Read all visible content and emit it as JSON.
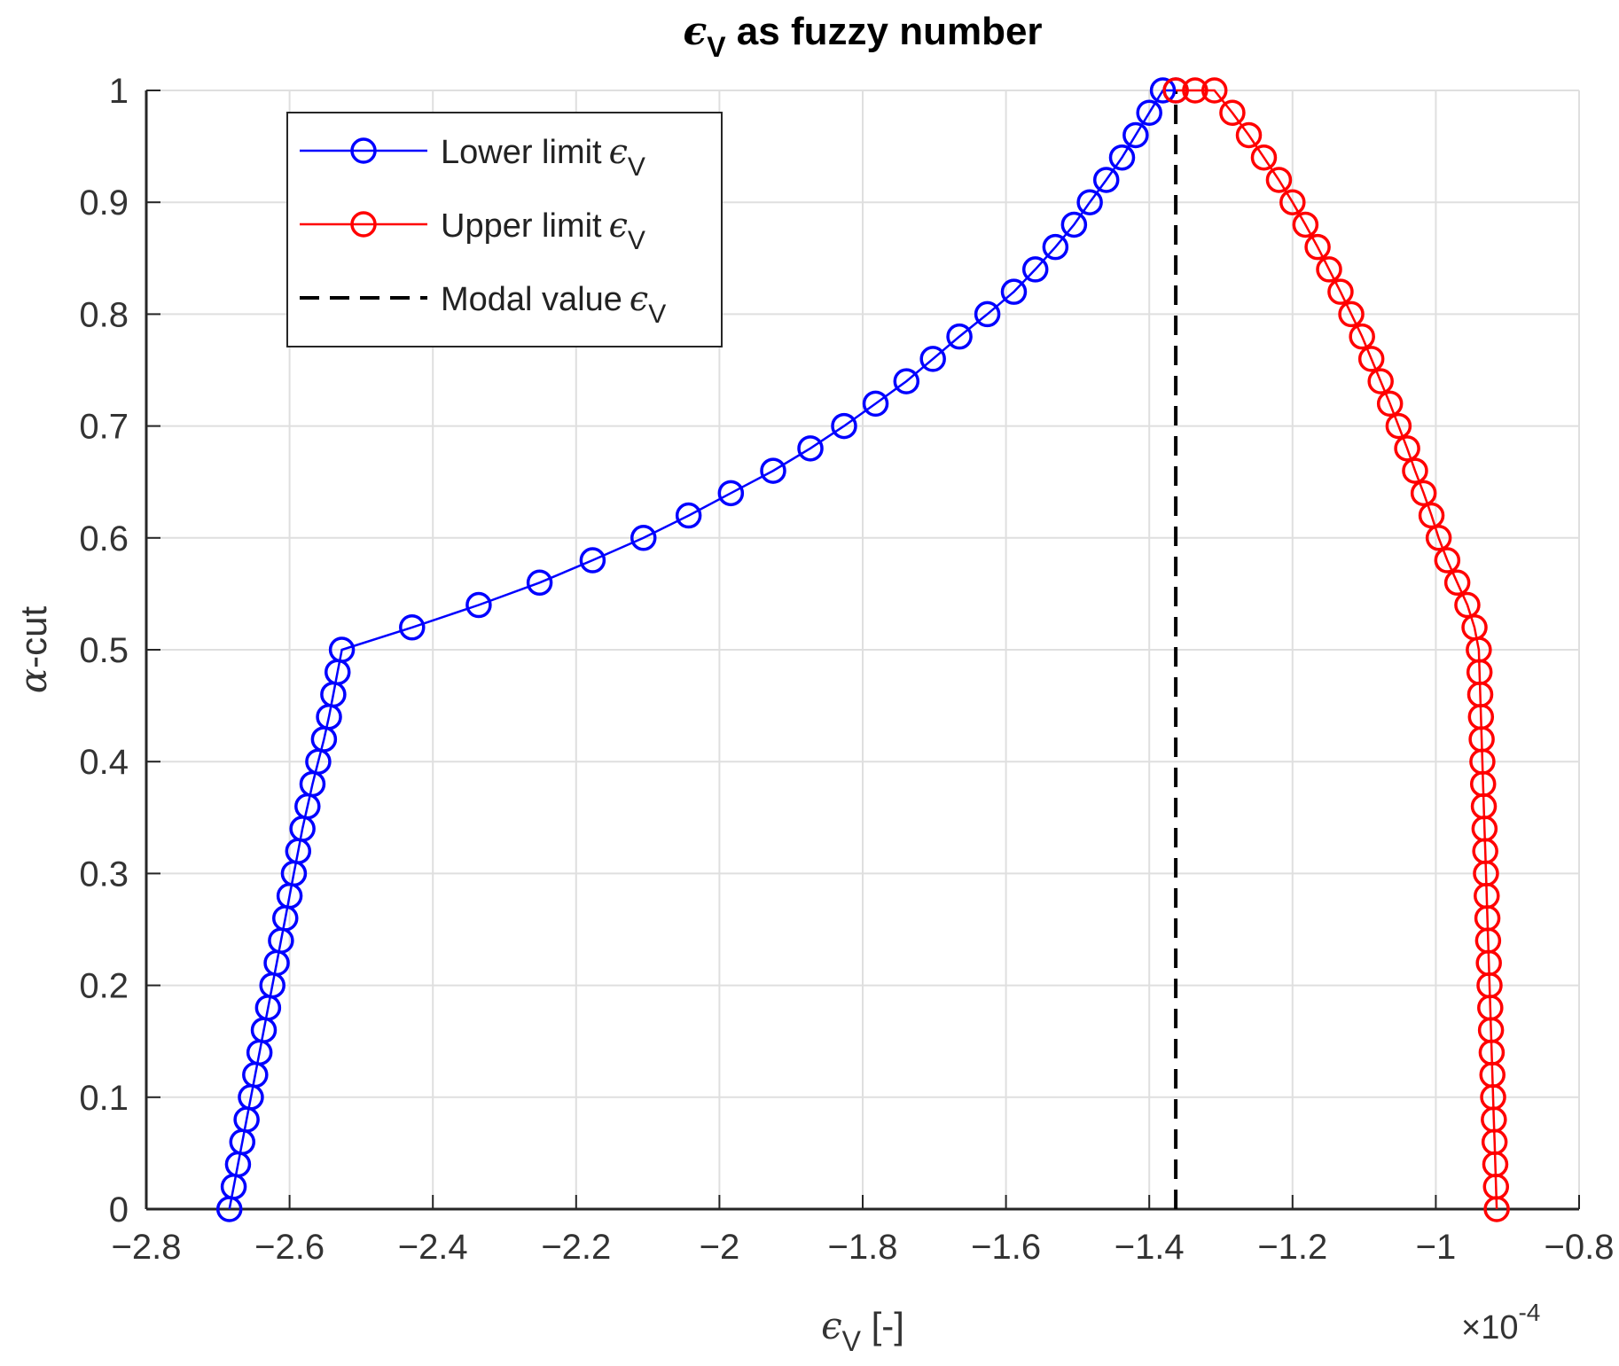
{
  "chart_data": {
    "type": "line",
    "title": {
      "symbol": "ϵ",
      "subscript": "V",
      "text": " as fuzzy number"
    },
    "xlabel": {
      "symbol": "ϵ",
      "subscript": "V",
      "text": " [-]"
    },
    "ylabel": {
      "symbol": "α",
      "text": "-cut"
    },
    "x_multiplier": {
      "times": "×",
      "base": "10",
      "exponent": "-4"
    },
    "xlim": [
      -2.8,
      -0.8
    ],
    "ylim": [
      0,
      1
    ],
    "x_ticks": [
      -2.8,
      -2.6,
      -2.4,
      -2.2,
      -2,
      -1.8,
      -1.6,
      -1.4,
      -1.2,
      -1,
      -0.8
    ],
    "x_tick_labels": [
      "−2.8",
      "−2.6",
      "−2.4",
      "−2.2",
      "−2",
      "−1.8",
      "−1.6",
      "−1.4",
      "−1.2",
      "−1",
      "−0.8"
    ],
    "y_ticks": [
      0,
      0.1,
      0.2,
      0.3,
      0.4,
      0.5,
      0.6,
      0.7,
      0.8,
      0.9,
      1
    ],
    "y_tick_labels": [
      "0",
      "0.1",
      "0.2",
      "0.3",
      "0.4",
      "0.5",
      "0.6",
      "0.7",
      "0.8",
      "0.9",
      "1"
    ],
    "grid": true,
    "legend_position": "top-left",
    "series": [
      {
        "name": "Lower limit",
        "symbol": "ϵ",
        "subscript": "V",
        "color": "#0000ff",
        "marker": "circle",
        "x": [
          -2.684,
          -2.678,
          -2.672,
          -2.666,
          -2.66,
          -2.654,
          -2.648,
          -2.642,
          -2.636,
          -2.63,
          -2.624,
          -2.618,
          -2.612,
          -2.606,
          -2.6,
          -2.594,
          -2.588,
          -2.582,
          -2.575,
          -2.568,
          -2.56,
          -2.552,
          -2.545,
          -2.539,
          -2.533,
          -2.527,
          -2.429,
          -2.336,
          -2.251,
          -2.177,
          -2.106,
          -2.043,
          -1.984,
          -1.925,
          -1.873,
          -1.826,
          -1.782,
          -1.739,
          -1.702,
          -1.665,
          -1.626,
          -1.589,
          -1.559,
          -1.531,
          -1.505,
          -1.483,
          -1.46,
          -1.438,
          -1.419,
          -1.4,
          -1.381,
          -1.363
        ],
        "y": [
          0,
          0.02,
          0.04,
          0.06,
          0.08,
          0.1,
          0.12,
          0.14,
          0.16,
          0.18,
          0.2,
          0.22,
          0.24,
          0.26,
          0.28,
          0.3,
          0.32,
          0.34,
          0.36,
          0.38,
          0.4,
          0.42,
          0.44,
          0.46,
          0.48,
          0.5,
          0.52,
          0.54,
          0.56,
          0.58,
          0.6,
          0.62,
          0.64,
          0.66,
          0.68,
          0.7,
          0.72,
          0.74,
          0.76,
          0.78,
          0.8,
          0.82,
          0.84,
          0.86,
          0.88,
          0.9,
          0.92,
          0.94,
          0.96,
          0.98,
          1.0,
          1.0
        ]
      },
      {
        "name": "Upper limit",
        "symbol": "ϵ",
        "subscript": "V",
        "color": "#ff0000",
        "marker": "circle",
        "x": [
          -0.915,
          -0.916,
          -0.917,
          -0.918,
          -0.919,
          -0.92,
          -0.921,
          -0.922,
          -0.923,
          -0.924,
          -0.925,
          -0.926,
          -0.927,
          -0.928,
          -0.929,
          -0.93,
          -0.931,
          -0.932,
          -0.933,
          -0.934,
          -0.935,
          -0.936,
          -0.937,
          -0.938,
          -0.939,
          -0.94,
          -0.946,
          -0.956,
          -0.97,
          -0.984,
          -0.996,
          -1.006,
          -1.017,
          -1.029,
          -1.04,
          -1.052,
          -1.064,
          -1.077,
          -1.09,
          -1.103,
          -1.118,
          -1.133,
          -1.149,
          -1.165,
          -1.182,
          -1.2,
          -1.219,
          -1.24,
          -1.261,
          -1.284,
          -1.309,
          -1.336,
          -1.363
        ],
        "y": [
          0,
          0.02,
          0.04,
          0.06,
          0.08,
          0.1,
          0.12,
          0.14,
          0.16,
          0.18,
          0.2,
          0.22,
          0.24,
          0.26,
          0.28,
          0.3,
          0.32,
          0.34,
          0.36,
          0.38,
          0.4,
          0.42,
          0.44,
          0.46,
          0.48,
          0.5,
          0.52,
          0.54,
          0.56,
          0.58,
          0.6,
          0.62,
          0.64,
          0.66,
          0.68,
          0.7,
          0.72,
          0.74,
          0.76,
          0.78,
          0.8,
          0.82,
          0.84,
          0.86,
          0.88,
          0.9,
          0.92,
          0.94,
          0.96,
          0.98,
          1.0,
          1.0,
          1.0
        ]
      },
      {
        "name": "Modal value",
        "symbol": "ϵ",
        "subscript": "V",
        "color": "#000000",
        "style": "dashed",
        "x": [
          -1.363,
          -1.363
        ],
        "y": [
          0,
          1
        ]
      }
    ]
  }
}
